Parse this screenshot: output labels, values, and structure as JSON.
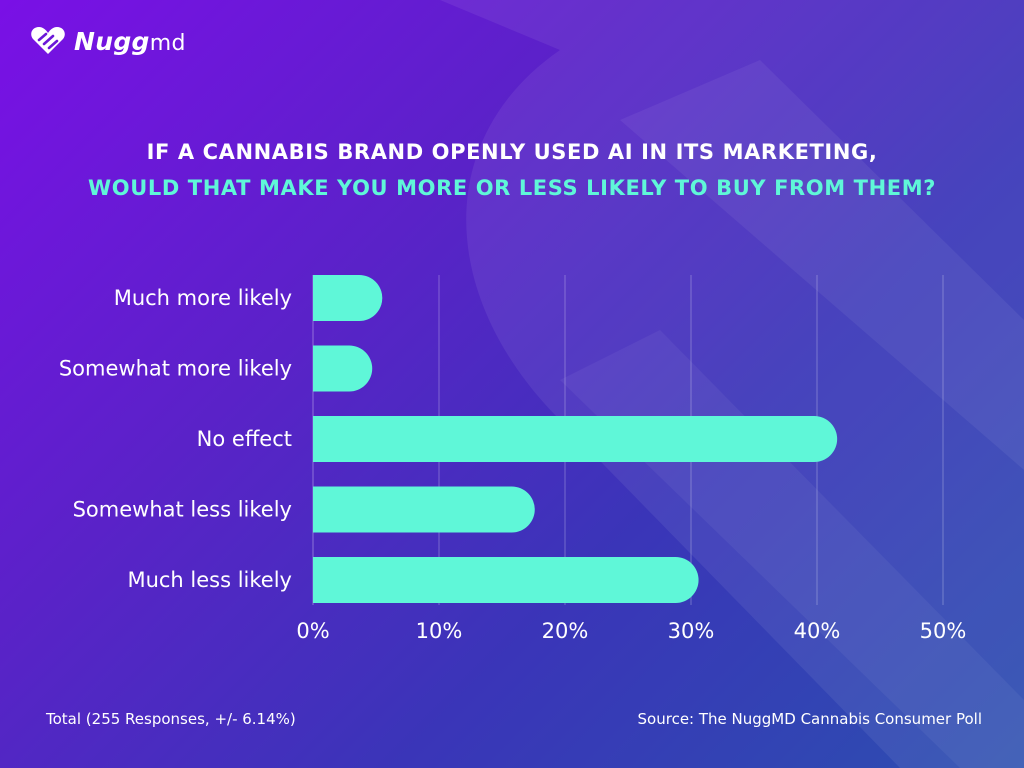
{
  "brand": {
    "name_main": "Nugg",
    "name_suffix": "md",
    "accent_color": "#5ff7d8"
  },
  "title": {
    "line1": "IF A CANNABIS BRAND OPENLY USED AI IN ITS MARKETING,",
    "line2": "WOULD THAT MAKE YOU MORE OR LESS LIKELY TO BUY FROM THEM?"
  },
  "chart_data": {
    "type": "bar",
    "orientation": "horizontal",
    "categories": [
      "Much more likely",
      "Somewhat more likely",
      "No effect",
      "Somewhat less likely",
      "Much less likely"
    ],
    "values": [
      5.5,
      4.7,
      41.6,
      17.6,
      30.6
    ],
    "xlim": [
      0,
      50
    ],
    "ticks": [
      "0%",
      "10%",
      "20%",
      "30%",
      "40%",
      "50%"
    ],
    "tick_values": [
      0,
      10,
      20,
      30,
      40,
      50
    ],
    "unit": "%",
    "grid": true,
    "bar_color": "#5ff7d8"
  },
  "footer": {
    "total": "Total (255 Responses, +/- 6.14%)",
    "source": "Source: The NuggMD Cannabis Consumer Poll"
  }
}
